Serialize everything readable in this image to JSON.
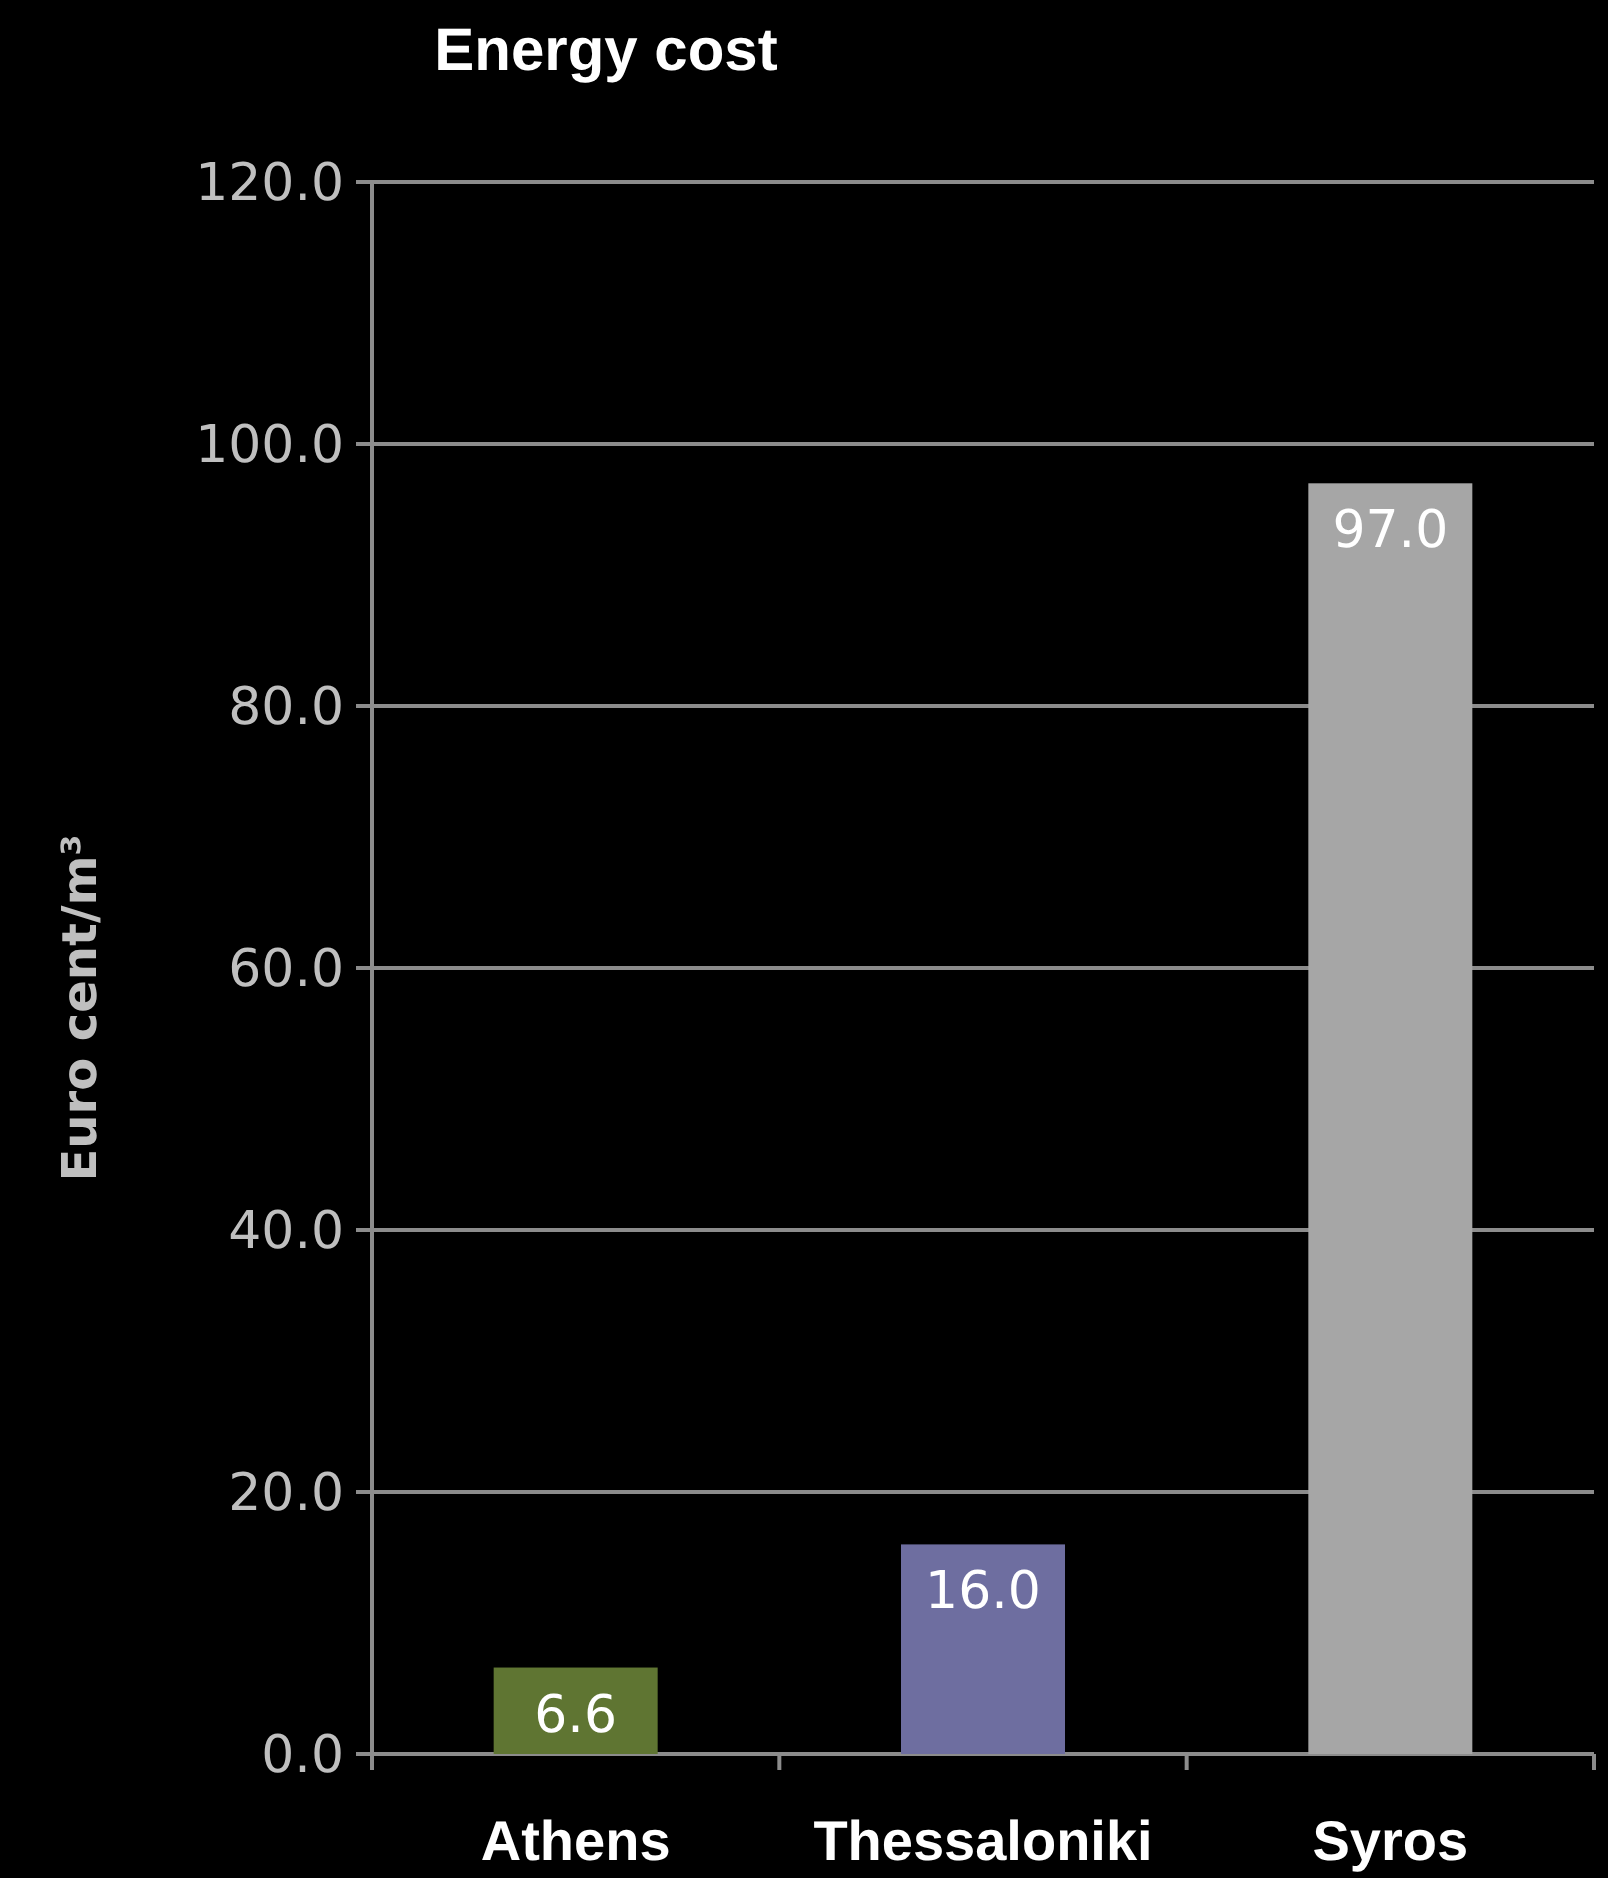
{
  "chart_data": {
    "type": "bar",
    "title": "Energy cost",
    "ylabel": "Euro cent/m³",
    "categories": [
      "Athens",
      "Thessaloniki",
      "Syros"
    ],
    "values": [
      6.6,
      16.0,
      97.0
    ],
    "colors": [
      "#5f7532",
      "#6e6ea0",
      "#a6a6a6"
    ],
    "value_labels": [
      "6.6",
      "16.0",
      "97.0"
    ],
    "ylim": [
      0,
      120
    ],
    "yticks": [
      {
        "value": 0,
        "label": "0.0"
      },
      {
        "value": 20,
        "label": "20.0"
      },
      {
        "value": 40,
        "label": "40.0"
      },
      {
        "value": 60,
        "label": "60.0"
      },
      {
        "value": 80,
        "label": "80.0"
      },
      {
        "value": 100,
        "label": "100.0"
      },
      {
        "value": 120,
        "label": "120.0"
      }
    ],
    "grid": "y"
  }
}
